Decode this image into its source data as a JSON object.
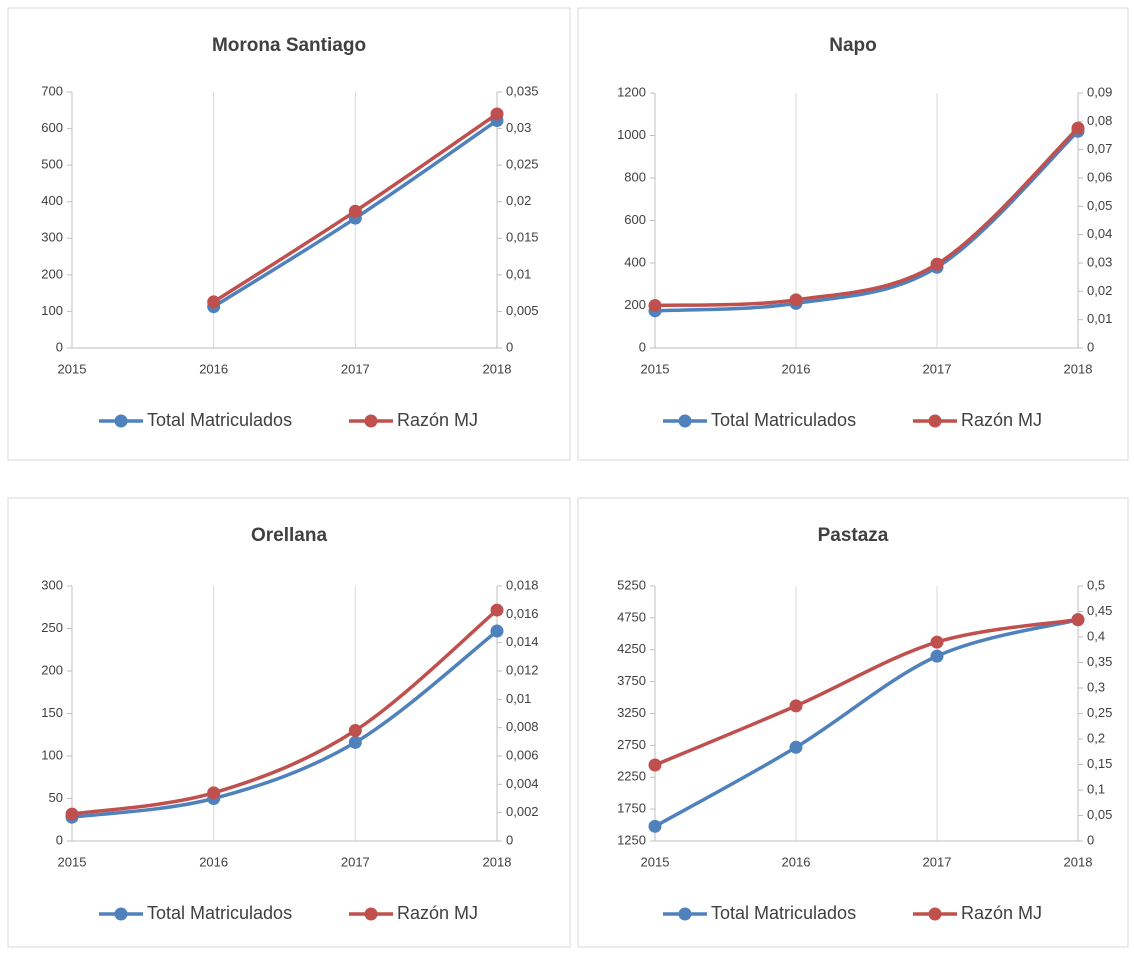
{
  "chart_data": [
    {
      "type": "line",
      "title": "Morona Santiago",
      "smooth": true,
      "grid": "x",
      "x": [
        2015,
        2016,
        2017,
        2018
      ],
      "xlim": [
        2015,
        2018
      ],
      "ylim": [
        0,
        700
      ],
      "yticks": [
        0,
        100,
        200,
        300,
        400,
        500,
        600,
        700
      ],
      "y2lim": [
        0,
        0.035
      ],
      "y2ticks": [
        0,
        {
          "value": 0.005,
          "label": "0,005"
        },
        {
          "value": 0.01,
          "label": "0,01"
        },
        {
          "value": 0.015,
          "label": "0,015"
        },
        {
          "value": 0.02,
          "label": "0,02"
        },
        {
          "value": 0.025,
          "label": "0,025"
        },
        {
          "value": 0.03,
          "label": "0,03"
        },
        {
          "value": 0.035,
          "label": "0,035"
        }
      ],
      "series": [
        {
          "name": "Total Matriculados",
          "color": "#4f81bd",
          "values": [
            null,
            113,
            355,
            622
          ]
        },
        {
          "name": "Razón MJ",
          "color": "#c0504d",
          "axis": "y2",
          "values": [
            null,
            0.0063,
            0.0187,
            0.032
          ]
        }
      ]
    },
    {
      "type": "line",
      "title": "Napo",
      "smooth": true,
      "grid": "x",
      "x": [
        2015,
        2016,
        2017,
        2018
      ],
      "xlim": [
        2015,
        2018
      ],
      "ylim": [
        0,
        1200
      ],
      "yticks": [
        0,
        200,
        400,
        600,
        800,
        1000,
        1200
      ],
      "y2lim": [
        0,
        0.09
      ],
      "y2ticks": [
        0,
        {
          "value": 0.01,
          "label": "0,01"
        },
        {
          "value": 0.02,
          "label": "0,02"
        },
        {
          "value": 0.03,
          "label": "0,03"
        },
        {
          "value": 0.04,
          "label": "0,04"
        },
        {
          "value": 0.05,
          "label": "0,05"
        },
        {
          "value": 0.06,
          "label": "0,06"
        },
        {
          "value": 0.07,
          "label": "0,07"
        },
        {
          "value": 0.08,
          "label": "0,08"
        },
        {
          "value": 0.09,
          "label": "0,09"
        }
      ],
      "series": [
        {
          "name": "Total Matriculados",
          "color": "#4f81bd",
          "values": [
            175,
            210,
            380,
            1020
          ]
        },
        {
          "name": "Razón MJ",
          "color": "#c0504d",
          "axis": "y2",
          "values": [
            0.015,
            0.017,
            0.0296,
            0.0776
          ]
        }
      ]
    },
    {
      "type": "line",
      "title": "Orellana",
      "smooth": true,
      "grid": "x",
      "x": [
        2015,
        2016,
        2017,
        2018
      ],
      "xlim": [
        2015,
        2018
      ],
      "ylim": [
        0,
        300
      ],
      "yticks": [
        0,
        50,
        100,
        150,
        200,
        250,
        300
      ],
      "y2lim": [
        0,
        0.018
      ],
      "y2ticks": [
        0,
        {
          "value": 0.002,
          "label": "0,002"
        },
        {
          "value": 0.004,
          "label": "0,004"
        },
        {
          "value": 0.006,
          "label": "0,006"
        },
        {
          "value": 0.008,
          "label": "0,008"
        },
        {
          "value": 0.01,
          "label": "0,01"
        },
        {
          "value": 0.012,
          "label": "0,012"
        },
        {
          "value": 0.014,
          "label": "0,014"
        },
        {
          "value": 0.016,
          "label": "0,016"
        },
        {
          "value": 0.018,
          "label": "0,018"
        }
      ],
      "series": [
        {
          "name": "Total Matriculados",
          "color": "#4f81bd",
          "values": [
            28,
            50,
            116,
            247
          ]
        },
        {
          "name": "Razón MJ",
          "color": "#c0504d",
          "axis": "y2",
          "values": [
            0.0019,
            0.0034,
            0.0078,
            0.0163
          ]
        }
      ]
    },
    {
      "type": "line",
      "title": "Pastaza",
      "smooth": true,
      "grid": "x",
      "x": [
        2015,
        2016,
        2017,
        2018
      ],
      "xlim": [
        2015,
        2018
      ],
      "ylim": [
        1250,
        5250
      ],
      "yticks": [
        1250,
        1750,
        2250,
        2750,
        3250,
        3750,
        4250,
        4750,
        5250
      ],
      "y2lim": [
        0,
        0.5
      ],
      "y2ticks": [
        0,
        {
          "value": 0.05,
          "label": "0,05"
        },
        {
          "value": 0.1,
          "label": "0,1"
        },
        {
          "value": 0.15,
          "label": "0,15"
        },
        {
          "value": 0.2,
          "label": "0,2"
        },
        {
          "value": 0.25,
          "label": "0,25"
        },
        {
          "value": 0.3,
          "label": "0,3"
        },
        {
          "value": 0.35,
          "label": "0,35"
        },
        {
          "value": 0.4,
          "label": "0,4"
        },
        {
          "value": 0.45,
          "label": "0,45"
        },
        {
          "value": 0.5,
          "label": "0,5"
        }
      ],
      "series": [
        {
          "name": "Total Matriculados",
          "color": "#4f81bd",
          "values": [
            1480,
            2720,
            4150,
            4720
          ]
        },
        {
          "name": "Razón MJ",
          "color": "#c0504d",
          "axis": "y2",
          "values": [
            0.149,
            0.265,
            0.39,
            0.434
          ]
        }
      ]
    }
  ]
}
